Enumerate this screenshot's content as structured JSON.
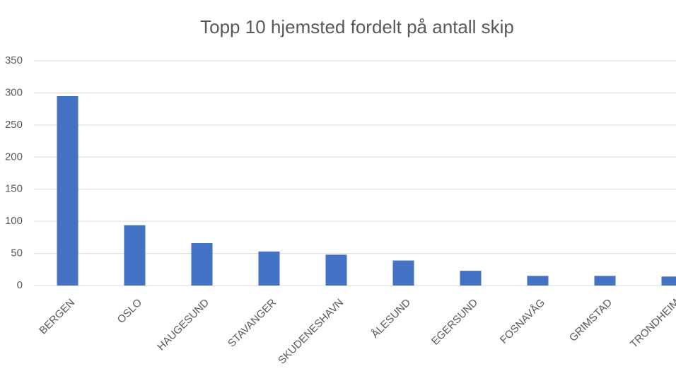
{
  "chart_data": {
    "type": "bar",
    "title": "Topp 10 hjemsted fordelt på antall skip",
    "categories": [
      "BERGEN",
      "OSLO",
      "HAUGESUND",
      "STAVANGER",
      "SKUDENESHAVN",
      "ÅLESUND",
      "EGERSUND",
      "FOSNAVÅG",
      "GRIMSTAD",
      "TRONDHEIM"
    ],
    "values": [
      295,
      94,
      66,
      53,
      48,
      39,
      23,
      15,
      15,
      14
    ],
    "color": "#4472c4",
    "ylim": [
      0,
      350
    ],
    "yticks": [
      0,
      50,
      100,
      150,
      200,
      250,
      300,
      350
    ],
    "grid": true
  }
}
